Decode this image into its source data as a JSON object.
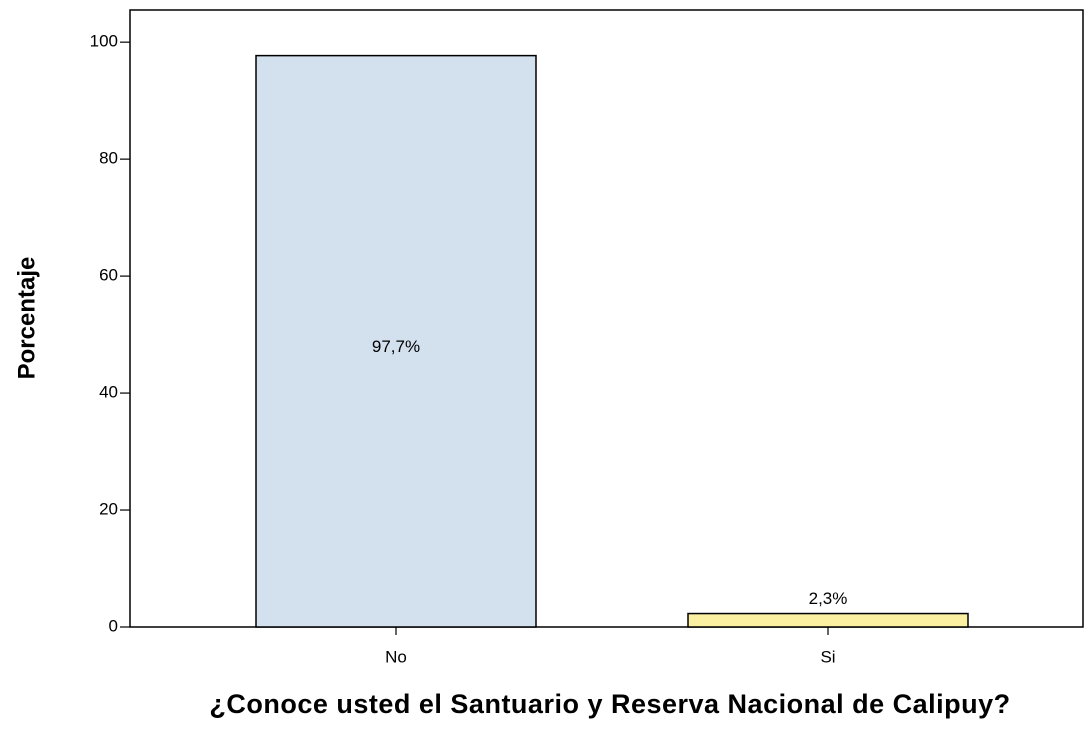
{
  "chart_data": {
    "type": "bar",
    "categories": [
      "No",
      "Si"
    ],
    "values": [
      97.7,
      2.3
    ],
    "value_labels": [
      "97,7%",
      "2,3%"
    ],
    "colors": [
      "#d3e0ee",
      "#fbf0a2"
    ],
    "ylabel": "Porcentaje",
    "xlabel": "¿Conoce usted el Santuario y Reserva Nacional de Calipuy?",
    "ylim": [
      0,
      105.5
    ],
    "yticks": [
      0,
      20,
      40,
      60,
      80,
      100
    ]
  }
}
